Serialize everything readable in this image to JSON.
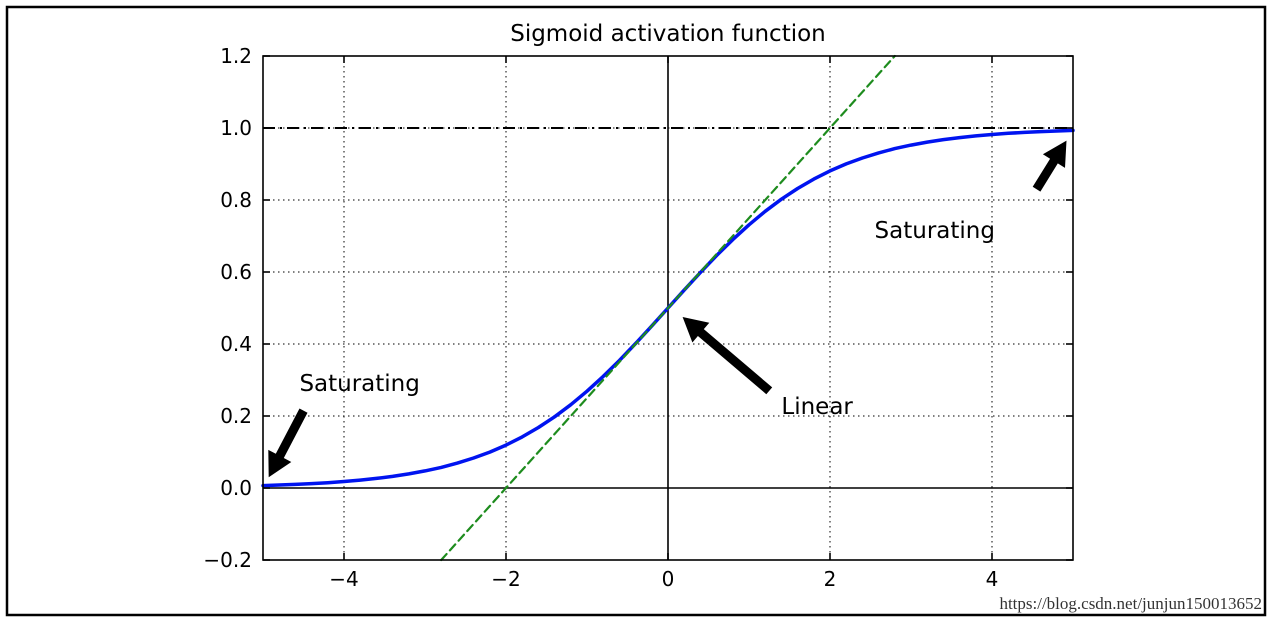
{
  "chart_data": {
    "type": "line",
    "title": "Sigmoid activation function",
    "xlabel": "",
    "ylabel": "",
    "xlim": [
      -5,
      5
    ],
    "ylim": [
      -0.2,
      1.2
    ],
    "grid": true,
    "legend": null,
    "x_ticks": [
      -4,
      -2,
      0,
      2,
      4
    ],
    "x_tick_labels": [
      "−4",
      "−2",
      "0",
      "2",
      "4"
    ],
    "y_ticks": [
      -0.2,
      0.0,
      0.2,
      0.4,
      0.6,
      0.8,
      1.0,
      1.2
    ],
    "y_tick_labels": [
      "−0.2",
      "0.0",
      "0.2",
      "0.4",
      "0.6",
      "0.8",
      "1.0",
      "1.2"
    ],
    "series": [
      {
        "name": "sigmoid",
        "formula": "y = 1 / (1 + exp(-x))",
        "color": "#0014f0",
        "width": 3.5,
        "dash": null,
        "x": [
          -5.0,
          -4.8,
          -4.6,
          -4.4,
          -4.2,
          -4.0,
          -3.8,
          -3.6,
          -3.4,
          -3.2,
          -3.0,
          -2.8,
          -2.6,
          -2.4,
          -2.2,
          -2.0,
          -1.8,
          -1.6,
          -1.4,
          -1.2,
          -1.0,
          -0.8,
          -0.6,
          -0.4,
          -0.2,
          0.0,
          0.2,
          0.4,
          0.6,
          0.8,
          1.0,
          1.2,
          1.4,
          1.6,
          1.8,
          2.0,
          2.2,
          2.4,
          2.6,
          2.8,
          3.0,
          3.2,
          3.4,
          3.6,
          3.8,
          4.0,
          4.2,
          4.4,
          4.6,
          4.8,
          5.0
        ],
        "y": [
          0.0067,
          0.0082,
          0.0099,
          0.0121,
          0.0148,
          0.018,
          0.0219,
          0.0266,
          0.0323,
          0.0392,
          0.0474,
          0.0573,
          0.0691,
          0.0832,
          0.0997,
          0.1192,
          0.1419,
          0.168,
          0.1978,
          0.2315,
          0.2689,
          0.31,
          0.3543,
          0.4013,
          0.4502,
          0.5,
          0.5498,
          0.5987,
          0.6457,
          0.69,
          0.7311,
          0.7685,
          0.8022,
          0.832,
          0.8581,
          0.8808,
          0.9003,
          0.9168,
          0.9309,
          0.9427,
          0.9526,
          0.9608,
          0.9677,
          0.9734,
          0.9781,
          0.982,
          0.9852,
          0.9879,
          0.9901,
          0.9918,
          0.9933
        ]
      },
      {
        "name": "tangent-at-origin",
        "formula": "y = 0.25x + 0.5",
        "color": "#1e8c1e",
        "width": 2.2,
        "dash": "8 5",
        "x": [
          -2.8,
          2.8
        ],
        "y": [
          -0.2,
          1.2
        ]
      }
    ],
    "reference_lines": [
      {
        "name": "asymptote-y-equals-1",
        "orientation": "horizontal",
        "value": 1.0,
        "style": "dashdot",
        "color": "#000000",
        "width": 2
      },
      {
        "name": "x-axis-zero-line",
        "orientation": "horizontal",
        "value": 0.0,
        "style": "solid",
        "color": "#000000",
        "width": 1.6
      },
      {
        "name": "y-axis-zero-line",
        "orientation": "vertical",
        "value": 0.0,
        "style": "solid",
        "color": "#000000",
        "width": 1.6
      }
    ],
    "annotations": [
      {
        "label": "Saturating",
        "text_x": -4.55,
        "text_y": 0.27,
        "arrow_tail": [
          -4.5,
          0.215
        ],
        "arrow_tip": [
          -4.93,
          0.03
        ]
      },
      {
        "label": "Linear",
        "text_x": 1.4,
        "text_y": 0.205,
        "arrow_tail": [
          1.25,
          0.27
        ],
        "arrow_tip": [
          0.18,
          0.475
        ]
      },
      {
        "label": "Saturating",
        "text_x": 2.55,
        "text_y": 0.695,
        "arrow_tail": [
          4.55,
          0.83
        ],
        "arrow_tip": [
          4.92,
          0.965
        ]
      }
    ],
    "grid_style": {
      "color": "#000000",
      "dash": "1.5 3.5",
      "width": 1
    }
  },
  "watermark": {
    "text": "https://blog.csdn.net/junjun150013652",
    "color": "#e06666"
  }
}
